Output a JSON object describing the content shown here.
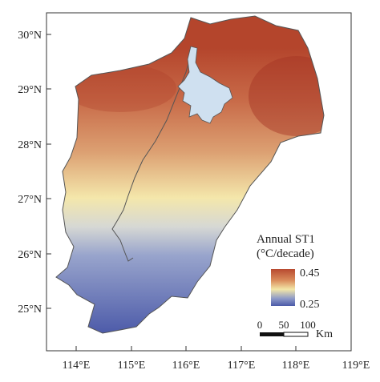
{
  "map": {
    "lat_ticks": [
      "30°N",
      "29°N",
      "28°N",
      "27°N",
      "26°N",
      "25°N"
    ],
    "lon_ticks": [
      "114°E",
      "115°E",
      "116°E",
      "117°E",
      "118°E",
      "119°E"
    ],
    "legend": {
      "title_line1": "Annual ST1",
      "title_line2": "(°C/decade)",
      "max_label": "0.45",
      "min_label": "0.25",
      "colors": [
        "#b84a30",
        "#d98a5a",
        "#f3e6a8",
        "#8e9ac8",
        "#4b5aa8"
      ]
    },
    "scalebar": {
      "labels": [
        "0",
        "50",
        "100"
      ],
      "unit": "Km"
    },
    "lake_color": "#cfe0f0",
    "border_color": "#555555"
  }
}
